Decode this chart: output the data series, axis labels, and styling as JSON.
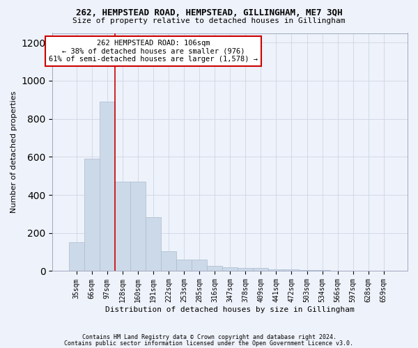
{
  "title": "262, HEMPSTEAD ROAD, HEMPSTEAD, GILLINGHAM, ME7 3QH",
  "subtitle": "Size of property relative to detached houses in Gillingham",
  "xlabel": "Distribution of detached houses by size in Gillingham",
  "ylabel": "Number of detached properties",
  "bar_color": "#ccd9e8",
  "bar_edge_color": "#aabbd0",
  "categories": [
    "35sqm",
    "66sqm",
    "97sqm",
    "128sqm",
    "160sqm",
    "191sqm",
    "222sqm",
    "253sqm",
    "285sqm",
    "316sqm",
    "347sqm",
    "378sqm",
    "409sqm",
    "441sqm",
    "472sqm",
    "503sqm",
    "534sqm",
    "566sqm",
    "597sqm",
    "628sqm",
    "659sqm"
  ],
  "values": [
    150,
    590,
    890,
    470,
    470,
    285,
    105,
    60,
    60,
    28,
    20,
    15,
    15,
    10,
    10,
    5,
    5,
    3,
    3,
    2,
    0
  ],
  "ylim": [
    0,
    1250
  ],
  "yticks": [
    0,
    200,
    400,
    600,
    800,
    1000,
    1200
  ],
  "property_line_x": 2.5,
  "annotation_box_text": "262 HEMPSTEAD ROAD: 106sqm\n← 38% of detached houses are smaller (976)\n61% of semi-detached houses are larger (1,578) →",
  "annotation_box_color": "#ffffff",
  "annotation_box_edge_color": "#cc0000",
  "property_line_color": "#cc0000",
  "footer_line1": "Contains HM Land Registry data © Crown copyright and database right 2024.",
  "footer_line2": "Contains public sector information licensed under the Open Government Licence v3.0.",
  "background_color": "#eef2fa",
  "grid_color": "#c8d0e0"
}
